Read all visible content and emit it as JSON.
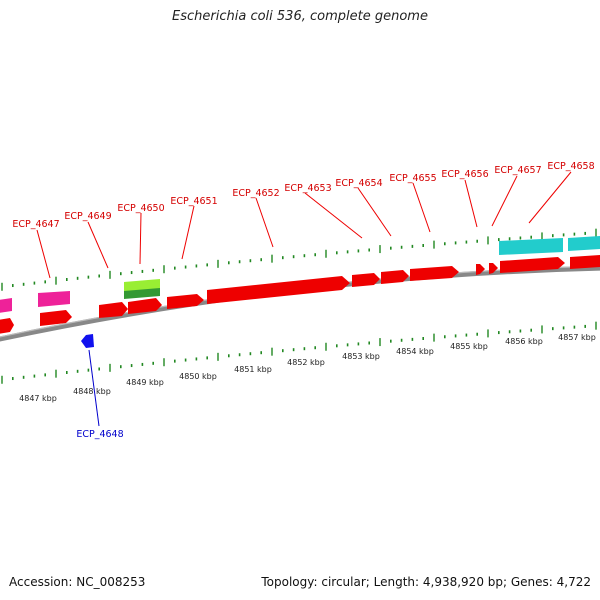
{
  "title": "Escherichia coli 536, complete genome",
  "footer": {
    "accession": "Accession: NC_008253",
    "summary": "Topology: circular; Length: 4,938,920 bp; Genes: 4,722"
  },
  "colors": {
    "cds_red": "#ee0000",
    "magenta": "#ee2299",
    "cyan": "#22cccc",
    "green_light": "#99ee33",
    "green_dark": "#339933",
    "blue": "#1111ee",
    "backbone": "#888888",
    "tick_green": "#228822",
    "label_red": "#d40000",
    "label_blue": "#0000cc"
  },
  "gene_labels": [
    {
      "id": "ecp4647",
      "text": "ECP_4647",
      "strand": "plus"
    },
    {
      "id": "ecp4649",
      "text": "ECP_4649",
      "strand": "plus"
    },
    {
      "id": "ecp4650",
      "text": "ECP_4650",
      "strand": "plus"
    },
    {
      "id": "ecp4651",
      "text": "ECP_4651",
      "strand": "plus"
    },
    {
      "id": "ecp4652",
      "text": "ECP_4652",
      "strand": "plus"
    },
    {
      "id": "ecp4653",
      "text": "ECP_4653",
      "strand": "plus"
    },
    {
      "id": "ecp4654",
      "text": "ECP_4654",
      "strand": "plus"
    },
    {
      "id": "ecp4655",
      "text": "ECP_4655",
      "strand": "plus"
    },
    {
      "id": "ecp4656",
      "text": "ECP_4656",
      "strand": "plus"
    },
    {
      "id": "ecp4657",
      "text": "ECP_4657",
      "strand": "plus"
    },
    {
      "id": "ecp4658",
      "text": "ECP_4658",
      "strand": "plus"
    },
    {
      "id": "ecp4648",
      "text": "ECP_4648",
      "strand": "minus"
    }
  ],
  "kbp_labels": [
    "4847 kbp",
    "4848 kbp",
    "4849 kbp",
    "4850 kbp",
    "4851 kbp",
    "4852 kbp",
    "4853 kbp",
    "4854 kbp",
    "4855 kbp",
    "4856 kbp",
    "4857 kbp"
  ]
}
